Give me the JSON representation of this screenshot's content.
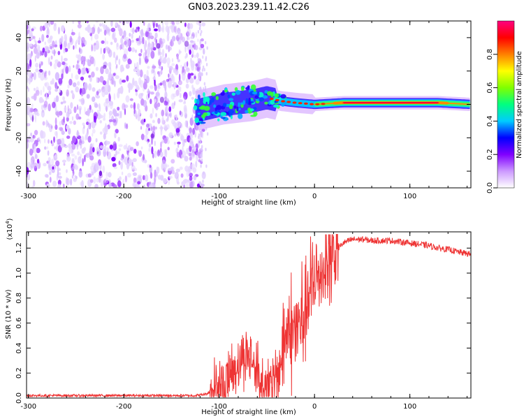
{
  "title": "GN03.2023.239.11.42.C26",
  "chart_data": [
    {
      "type": "heatmap",
      "title": "GN03.2023.239.11.42.C26",
      "xlabel": "Height of straight line (km)",
      "ylabel": "Frequency (Hz)",
      "xlim": [
        -302,
        164
      ],
      "ylim": [
        -50,
        50
      ],
      "x_ticks": [
        -300,
        -200,
        -100,
        0,
        100
      ],
      "x_tick_labels": [
        "-300",
        "-200",
        "-100",
        "0",
        "100"
      ],
      "y_ticks": [
        -40,
        -20,
        0,
        20,
        40
      ],
      "y_tick_labels": [
        "-40",
        "-20",
        "0",
        "20",
        "40"
      ],
      "signal_track": [
        {
          "x": -125,
          "y": -4
        },
        {
          "x": -110,
          "y": -2
        },
        {
          "x": -95,
          "y": 0
        },
        {
          "x": -80,
          "y": 1
        },
        {
          "x": -65,
          "y": 2
        },
        {
          "x": -50,
          "y": 4
        },
        {
          "x": -35,
          "y": 2
        },
        {
          "x": -20,
          "y": 1
        },
        {
          "x": 0,
          "y": 0
        },
        {
          "x": 30,
          "y": 1
        },
        {
          "x": 60,
          "y": 1
        },
        {
          "x": 100,
          "y": 1
        },
        {
          "x": 130,
          "y": 1
        },
        {
          "x": 164,
          "y": 0
        }
      ],
      "colorbar": {
        "label": "Normalized spectral amplitude",
        "range": [
          0,
          1
        ],
        "ticks": [
          0.0,
          0.2,
          0.4,
          0.6,
          0.8
        ],
        "tick_labels": [
          "0.0",
          "0.2",
          "0.4",
          "0.6",
          "0.8"
        ],
        "colors": [
          "#ffffff",
          "#cc99ff",
          "#8000ff",
          "#0000ff",
          "#00ccff",
          "#00ff80",
          "#80ff00",
          "#ffff00",
          "#ff8000",
          "#ff0000",
          "#ff0080"
        ]
      }
    },
    {
      "type": "line",
      "xlabel": "Height of straight line (km)",
      "ylabel": "SNR (10 * v/v)",
      "y_scale_label": "(x10",
      "y_scale_exp": "4",
      "y_scale_close": ")",
      "xlim": [
        -302,
        164
      ],
      "ylim": [
        0,
        1.33
      ],
      "x_ticks": [
        -300,
        -200,
        -100,
        0,
        100
      ],
      "x_tick_labels": [
        "-300",
        "-200",
        "-100",
        "0",
        "100"
      ],
      "y_ticks": [
        0.0,
        0.2,
        0.4,
        0.6,
        0.8,
        1.0,
        1.2
      ],
      "y_tick_labels": [
        "0.0",
        "0.2",
        "0.4",
        "0.6",
        "0.8",
        "1.0",
        "1.2"
      ],
      "series": [
        {
          "name": "SNR",
          "color": "#ee3333",
          "x": [
            -302,
            -280,
            -260,
            -240,
            -220,
            -200,
            -180,
            -160,
            -140,
            -125,
            -115,
            -105,
            -95,
            -88,
            -80,
            -75,
            -70,
            -65,
            -60,
            -55,
            -50,
            -45,
            -40,
            -35,
            -30,
            -25,
            -20,
            -15,
            -10,
            -5,
            0,
            5,
            10,
            15,
            20,
            25,
            30,
            40,
            50,
            60,
            70,
            80,
            90,
            100,
            110,
            120,
            130,
            140,
            150,
            164
          ],
          "y": [
            0.02,
            0.02,
            0.02,
            0.02,
            0.02,
            0.02,
            0.02,
            0.02,
            0.02,
            0.02,
            0.03,
            0.06,
            0.12,
            0.2,
            0.28,
            0.32,
            0.35,
            0.3,
            0.2,
            0.12,
            0.1,
            0.1,
            0.15,
            0.3,
            0.5,
            0.55,
            0.5,
            0.6,
            0.7,
            0.8,
            0.9,
            1.0,
            1.05,
            1.1,
            1.15,
            1.2,
            1.24,
            1.27,
            1.27,
            1.26,
            1.26,
            1.26,
            1.25,
            1.24,
            1.23,
            1.22,
            1.2,
            1.19,
            1.17,
            1.15
          ]
        }
      ]
    }
  ]
}
